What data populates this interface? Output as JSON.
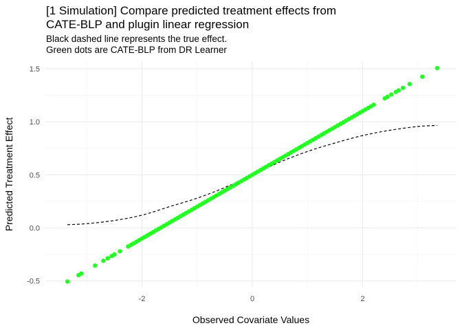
{
  "chart_data": {
    "type": "scatter",
    "title_lines": [
      "[1 Simulation] Compare predicted treatment effects from",
      "CATE-BLP and plugin linear regression"
    ],
    "subtitle_lines": [
      "Black dashed line represents the true effect.",
      "Green dots are CATE-BLP from DR Learner"
    ],
    "xlabel": "Observed Covariate Values",
    "ylabel": "Predicted Treatment Effect",
    "xlim": [
      -3.75,
      3.7
    ],
    "ylim": [
      -0.56,
      1.57
    ],
    "x_ticks": [
      -2,
      0,
      2
    ],
    "x_tick_labels": [
      "-2",
      "0",
      "2"
    ],
    "y_ticks": [
      -0.5,
      0.0,
      0.5,
      1.0,
      1.5
    ],
    "y_tick_labels": [
      "-0.5",
      "0.0",
      "0.5",
      "1.0",
      "1.5"
    ],
    "grid": true,
    "series": [
      {
        "kind": "points",
        "color": "#22ff22",
        "relation": "y = 0.5 + 0.3 * x",
        "x": [
          -3.35,
          -3.15,
          -3.1,
          -2.85,
          -2.7,
          -2.62,
          -2.55,
          -2.5,
          -2.4,
          -2.25,
          -2.2,
          -2.15,
          -2.1,
          -2.05,
          -2.0,
          -1.95,
          -1.9,
          -1.85,
          -1.8,
          -1.75,
          -1.7,
          -1.65,
          -1.6,
          -1.55,
          -1.5,
          -1.45,
          -1.4,
          -1.35,
          -1.3,
          -1.25,
          -1.2,
          -1.15,
          -1.1,
          -1.05,
          -1.0,
          -0.95,
          -0.9,
          -0.85,
          -0.8,
          -0.75,
          -0.7,
          -0.65,
          -0.6,
          -0.55,
          -0.5,
          -0.45,
          -0.4,
          -0.35,
          -0.3,
          -0.25,
          -0.2,
          -0.15,
          -0.1,
          -0.05,
          0.0,
          0.05,
          0.1,
          0.15,
          0.2,
          0.25,
          0.3,
          0.35,
          0.4,
          0.45,
          0.5,
          0.55,
          0.6,
          0.65,
          0.7,
          0.75,
          0.8,
          0.85,
          0.9,
          0.95,
          1.0,
          1.05,
          1.1,
          1.15,
          1.2,
          1.25,
          1.3,
          1.35,
          1.4,
          1.45,
          1.5,
          1.55,
          1.6,
          1.65,
          1.7,
          1.75,
          1.8,
          1.85,
          1.9,
          1.95,
          2.0,
          2.05,
          2.1,
          2.15,
          2.2,
          2.4,
          2.45,
          2.52,
          2.6,
          2.65,
          2.73,
          2.85,
          3.08,
          3.35
        ],
        "y": [
          -0.505,
          -0.445,
          -0.43,
          -0.355,
          -0.31,
          -0.286,
          -0.265,
          -0.25,
          -0.22,
          -0.175,
          -0.16,
          -0.145,
          -0.13,
          -0.115,
          -0.1,
          -0.085,
          -0.07,
          -0.055,
          -0.04,
          -0.025,
          -0.01,
          0.005,
          0.02,
          0.035,
          0.05,
          0.065,
          0.08,
          0.095,
          0.11,
          0.125,
          0.14,
          0.155,
          0.17,
          0.185,
          0.2,
          0.215,
          0.23,
          0.245,
          0.26,
          0.275,
          0.29,
          0.305,
          0.32,
          0.335,
          0.35,
          0.365,
          0.38,
          0.395,
          0.41,
          0.425,
          0.44,
          0.455,
          0.47,
          0.485,
          0.5,
          0.515,
          0.53,
          0.545,
          0.56,
          0.575,
          0.59,
          0.605,
          0.62,
          0.635,
          0.65,
          0.665,
          0.68,
          0.695,
          0.71,
          0.725,
          0.74,
          0.755,
          0.77,
          0.785,
          0.8,
          0.815,
          0.83,
          0.845,
          0.86,
          0.875,
          0.89,
          0.905,
          0.92,
          0.935,
          0.95,
          0.965,
          0.98,
          0.995,
          1.01,
          1.025,
          1.04,
          1.055,
          1.07,
          1.085,
          1.1,
          1.115,
          1.13,
          1.145,
          1.16,
          1.22,
          1.235,
          1.256,
          1.28,
          1.295,
          1.319,
          1.355,
          1.424,
          1.505
        ]
      },
      {
        "kind": "line",
        "style": "dashed",
        "color": "#000000",
        "relation": "true effect",
        "x": [
          -3.35,
          -3.0,
          -2.5,
          -2.0,
          -1.5,
          -1.0,
          -0.5,
          0.0,
          0.5,
          1.0,
          1.5,
          2.0,
          2.5,
          3.0,
          3.35
        ],
        "y": [
          0.03,
          0.04,
          0.07,
          0.12,
          0.2,
          0.28,
          0.38,
          0.5,
          0.62,
          0.72,
          0.8,
          0.87,
          0.92,
          0.955,
          0.965
        ]
      }
    ]
  }
}
